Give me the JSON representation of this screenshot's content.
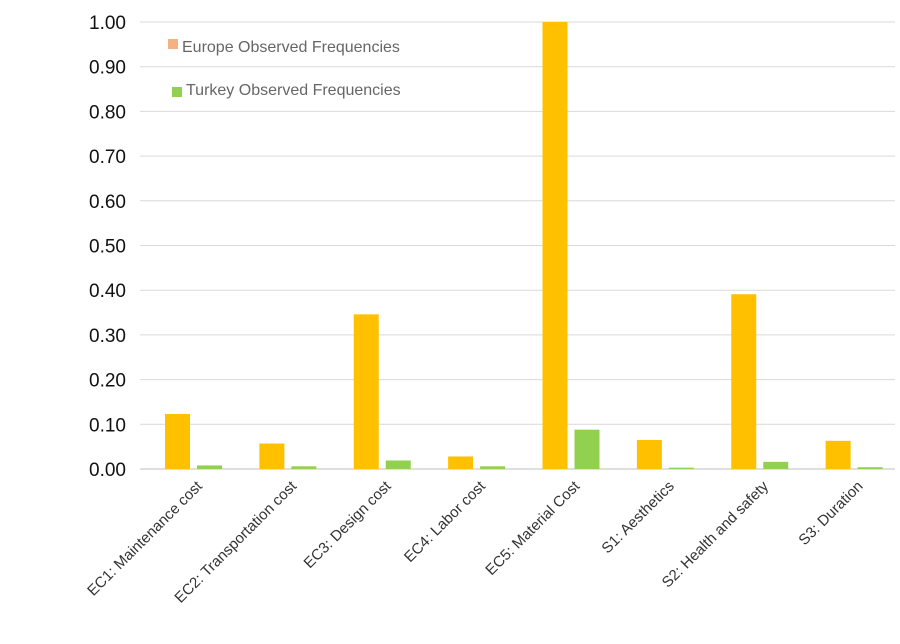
{
  "chart_data": {
    "type": "bar",
    "categories": [
      "EC1: Maintenance cost",
      "EC2: Transportation cost",
      "EC3: Design cost",
      "EC4: Labor cost",
      "EC5: Material Cost",
      "S1: Aesthetics",
      "S2: Health and safety",
      "S3: Duration"
    ],
    "series": [
      {
        "name": "Europe Observed Frequencies",
        "legend_color": "#f4b183",
        "bar_color": "#ffc000",
        "values": [
          0.123,
          0.057,
          0.346,
          0.028,
          1.0,
          0.065,
          0.391,
          0.063
        ]
      },
      {
        "name": "Turkey Observed Frequencies",
        "legend_color": "#92d050",
        "bar_color": "#92d050",
        "values": [
          0.008,
          0.006,
          0.019,
          0.006,
          0.088,
          0.003,
          0.016,
          0.004
        ]
      }
    ],
    "yticks": [
      "0.00",
      "0.10",
      "0.20",
      "0.30",
      "0.40",
      "0.50",
      "0.60",
      "0.70",
      "0.80",
      "0.90",
      "1.00"
    ],
    "ylim": [
      0,
      1.0
    ],
    "grid": true,
    "legend_position": "top-left",
    "title": "",
    "xlabel": "",
    "ylabel": ""
  }
}
